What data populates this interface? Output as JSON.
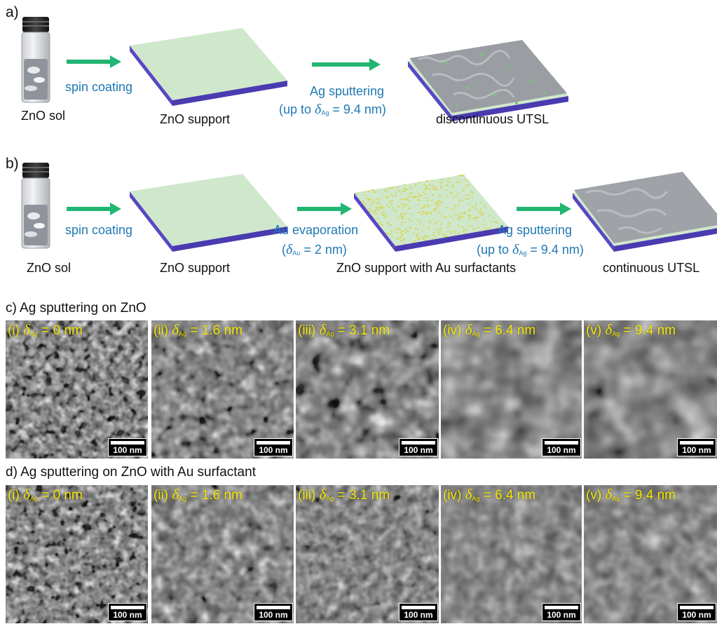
{
  "panel_a": {
    "letter": "a)",
    "sol_label": "ZnO sol",
    "spin_label": "spin coating",
    "support_label": "ZnO support",
    "ag_line1": "Ag sputtering",
    "ag_line2_pre": "(up to ",
    "ag_symbol": "δ",
    "ag_sub": "Ag",
    "ag_line2_post": " = 9.4 nm)",
    "result_label": "discontinuous UTSL"
  },
  "panel_b": {
    "letter": "b)",
    "sol_label": "ZnO sol",
    "spin_label": "spin coating",
    "support_label": "ZnO support",
    "au_line1": "Au evaporation",
    "au_line2_pre": "(",
    "au_symbol": "δ",
    "au_sub": "Au",
    "au_line2_post": " = 2 nm)",
    "au_support_label": "ZnO support with Au surfactants",
    "ag_line1": "Ag sputtering",
    "ag_line2_pre": "(up to ",
    "ag_symbol": "δ",
    "ag_sub": "Ag",
    "ag_line2_post": " = 9.4 nm)",
    "result_label": "continuous UTSL"
  },
  "panel_c": {
    "title": "c) Ag sputtering on ZnO",
    "images": [
      {
        "index": "(i)",
        "value": " = 0 nm"
      },
      {
        "index": "(ii)",
        "value": " = 1.6 nm"
      },
      {
        "index": "(iii)",
        "value": " = 3.1 nm"
      },
      {
        "index": "(iv)",
        "value": " = 6.4 nm"
      },
      {
        "index": "(v)",
        "value": " = 9.4 nm"
      }
    ]
  },
  "panel_d": {
    "title": "d) Ag sputtering on ZnO with Au surfactant",
    "images": [
      {
        "index": "(i)",
        "value": " = 0 nm"
      },
      {
        "index": "(ii)",
        "value": " = 1.6 nm"
      },
      {
        "index": "(iii)",
        "value": " = 3.1 nm"
      },
      {
        "index": "(iv)",
        "value": " = 6.4 nm"
      },
      {
        "index": "(v)",
        "value": " = 9.4 nm"
      }
    ]
  },
  "sem_symbol": "δ",
  "sem_sub": "Ag",
  "scale_label": "100 nm",
  "colors": {
    "arrow": "#22b573",
    "zno_top": "#cfe8cc",
    "zno_side": "#5a4fc0",
    "caption_blue": "#1f78b4",
    "sem_label": "#f4e600"
  }
}
